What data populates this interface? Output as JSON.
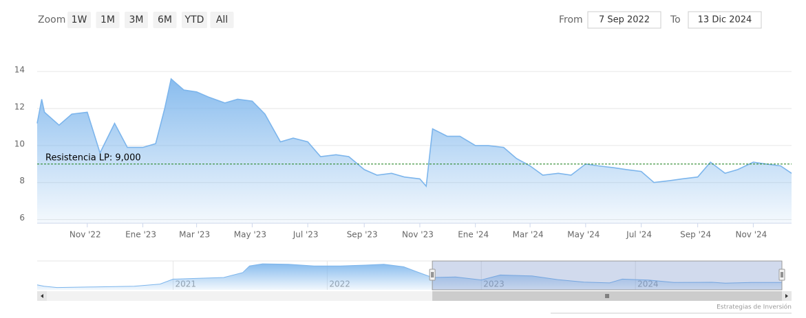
{
  "range_selector": {
    "zoom_label": "Zoom",
    "buttons": [
      "1W",
      "1M",
      "3M",
      "6M",
      "YTD",
      "All"
    ],
    "from_label": "From",
    "from": "7 Sep 2022",
    "to_label": "To",
    "to": "13 Dic 2024"
  },
  "credits": "Estrategias de Inversión",
  "chart_data": [
    {
      "type": "area",
      "color": "#7cb5ec",
      "x": [
        "2022-09-07",
        "2022-09-12",
        "2022-09-15",
        "2022-10-01",
        "2022-10-15",
        "2022-11-01",
        "2022-11-15",
        "2022-12-01",
        "2022-12-15",
        "2023-01-01",
        "2023-01-15",
        "2023-01-25",
        "2023-02-01",
        "2023-02-15",
        "2023-03-01",
        "2023-03-15",
        "2023-04-01",
        "2023-04-15",
        "2023-05-01",
        "2023-05-15",
        "2023-06-01",
        "2023-06-15",
        "2023-07-01",
        "2023-07-15",
        "2023-08-01",
        "2023-08-15",
        "2023-09-01",
        "2023-09-15",
        "2023-10-01",
        "2023-10-15",
        "2023-11-01",
        "2023-11-08",
        "2023-11-15",
        "2023-12-01",
        "2023-12-15",
        "2024-01-01",
        "2024-01-15",
        "2024-02-01",
        "2024-02-15",
        "2024-03-01",
        "2024-03-15",
        "2024-04-01",
        "2024-04-15",
        "2024-05-01",
        "2024-05-15",
        "2024-06-01",
        "2024-06-15",
        "2024-07-01",
        "2024-07-15",
        "2024-08-01",
        "2024-08-15",
        "2024-09-01",
        "2024-09-15",
        "2024-10-01",
        "2024-10-15",
        "2024-11-01",
        "2024-11-15",
        "2024-12-01",
        "2024-12-13"
      ],
      "values": [
        11.2,
        12.5,
        11.8,
        11.1,
        11.7,
        11.8,
        9.6,
        11.2,
        9.9,
        9.9,
        10.1,
        12.0,
        13.6,
        13.0,
        12.9,
        12.6,
        12.3,
        12.5,
        12.4,
        11.7,
        10.2,
        10.4,
        10.2,
        9.4,
        9.5,
        9.4,
        8.7,
        8.4,
        8.5,
        8.3,
        8.2,
        7.8,
        10.9,
        10.5,
        10.5,
        10.0,
        10.0,
        9.9,
        9.3,
        8.9,
        8.4,
        8.5,
        8.4,
        9.0,
        8.9,
        8.8,
        8.7,
        8.6,
        8.0,
        8.1,
        8.2,
        8.3,
        9.1,
        8.5,
        8.7,
        9.1,
        9.0,
        8.9,
        8.5
      ],
      "xlim": [
        "2022-09-07",
        "2024-12-13"
      ],
      "ylim": [
        5.8,
        15.75
      ],
      "yticks": [
        6,
        8,
        10,
        12,
        14
      ],
      "grid": true,
      "xticks": [
        {
          "value": "2022-11-01",
          "label": "Nov '22"
        },
        {
          "value": "2023-01-01",
          "label": "Ene '23"
        },
        {
          "value": "2023-03-01",
          "label": "Mar '23"
        },
        {
          "value": "2023-05-01",
          "label": "May '23"
        },
        {
          "value": "2023-07-01",
          "label": "Jul '23"
        },
        {
          "value": "2023-09-01",
          "label": "Sep '23"
        },
        {
          "value": "2023-11-01",
          "label": "Nov '23"
        },
        {
          "value": "2024-01-01",
          "label": "Ene '24"
        },
        {
          "value": "2024-03-01",
          "label": "Mar '24"
        },
        {
          "value": "2024-05-01",
          "label": "May '24"
        },
        {
          "value": "2024-07-01",
          "label": "Jul '24"
        },
        {
          "value": "2024-09-01",
          "label": "Sep '24"
        },
        {
          "value": "2024-11-01",
          "label": "Nov '24"
        }
      ],
      "plot_line": {
        "value": 9,
        "label": "Resistencia LP: 9,000",
        "color": "#2e8b2e"
      }
    },
    {
      "type": "area",
      "color": "#7cb5ec",
      "x": [
        "2020-02-14",
        "2020-03-01",
        "2020-04-01",
        "2020-07-01",
        "2020-10-01",
        "2020-12-01",
        "2021-01-01",
        "2021-03-01",
        "2021-05-01",
        "2021-06-15",
        "2021-07-01",
        "2021-08-01",
        "2021-10-01",
        "2021-12-01",
        "2022-02-01",
        "2022-04-01",
        "2022-05-15",
        "2022-07-01",
        "2022-08-01",
        "2022-09-07",
        "2022-11-01",
        "2023-01-01",
        "2023-02-15",
        "2023-05-01",
        "2023-07-01",
        "2023-09-01",
        "2023-11-01",
        "2023-12-01",
        "2024-02-01",
        "2024-04-01",
        "2024-07-01",
        "2024-08-01",
        "2024-10-01",
        "2024-12-13"
      ],
      "values": [
        7.0,
        6.2,
        5.4,
        5.8,
        6.2,
        7.5,
        10.5,
        11.0,
        11.5,
        14.5,
        18.5,
        19.8,
        19.5,
        18.5,
        18.5,
        19.0,
        19.5,
        18.0,
        15.0,
        11.5,
        11.8,
        10.0,
        13.0,
        12.4,
        10.2,
        8.7,
        8.2,
        10.5,
        9.9,
        8.5,
        8.6,
        8.1,
        8.5,
        8.5
      ],
      "xlim": [
        "2020-02-14",
        "2024-12-13"
      ],
      "ylim": [
        4,
        21.5
      ],
      "xticks": [
        {
          "value": "2021-01-01",
          "label": "2021"
        },
        {
          "value": "2022-01-01",
          "label": "2022"
        },
        {
          "value": "2023-01-01",
          "label": "2023"
        },
        {
          "value": "2024-01-01",
          "label": "2024"
        }
      ]
    }
  ]
}
